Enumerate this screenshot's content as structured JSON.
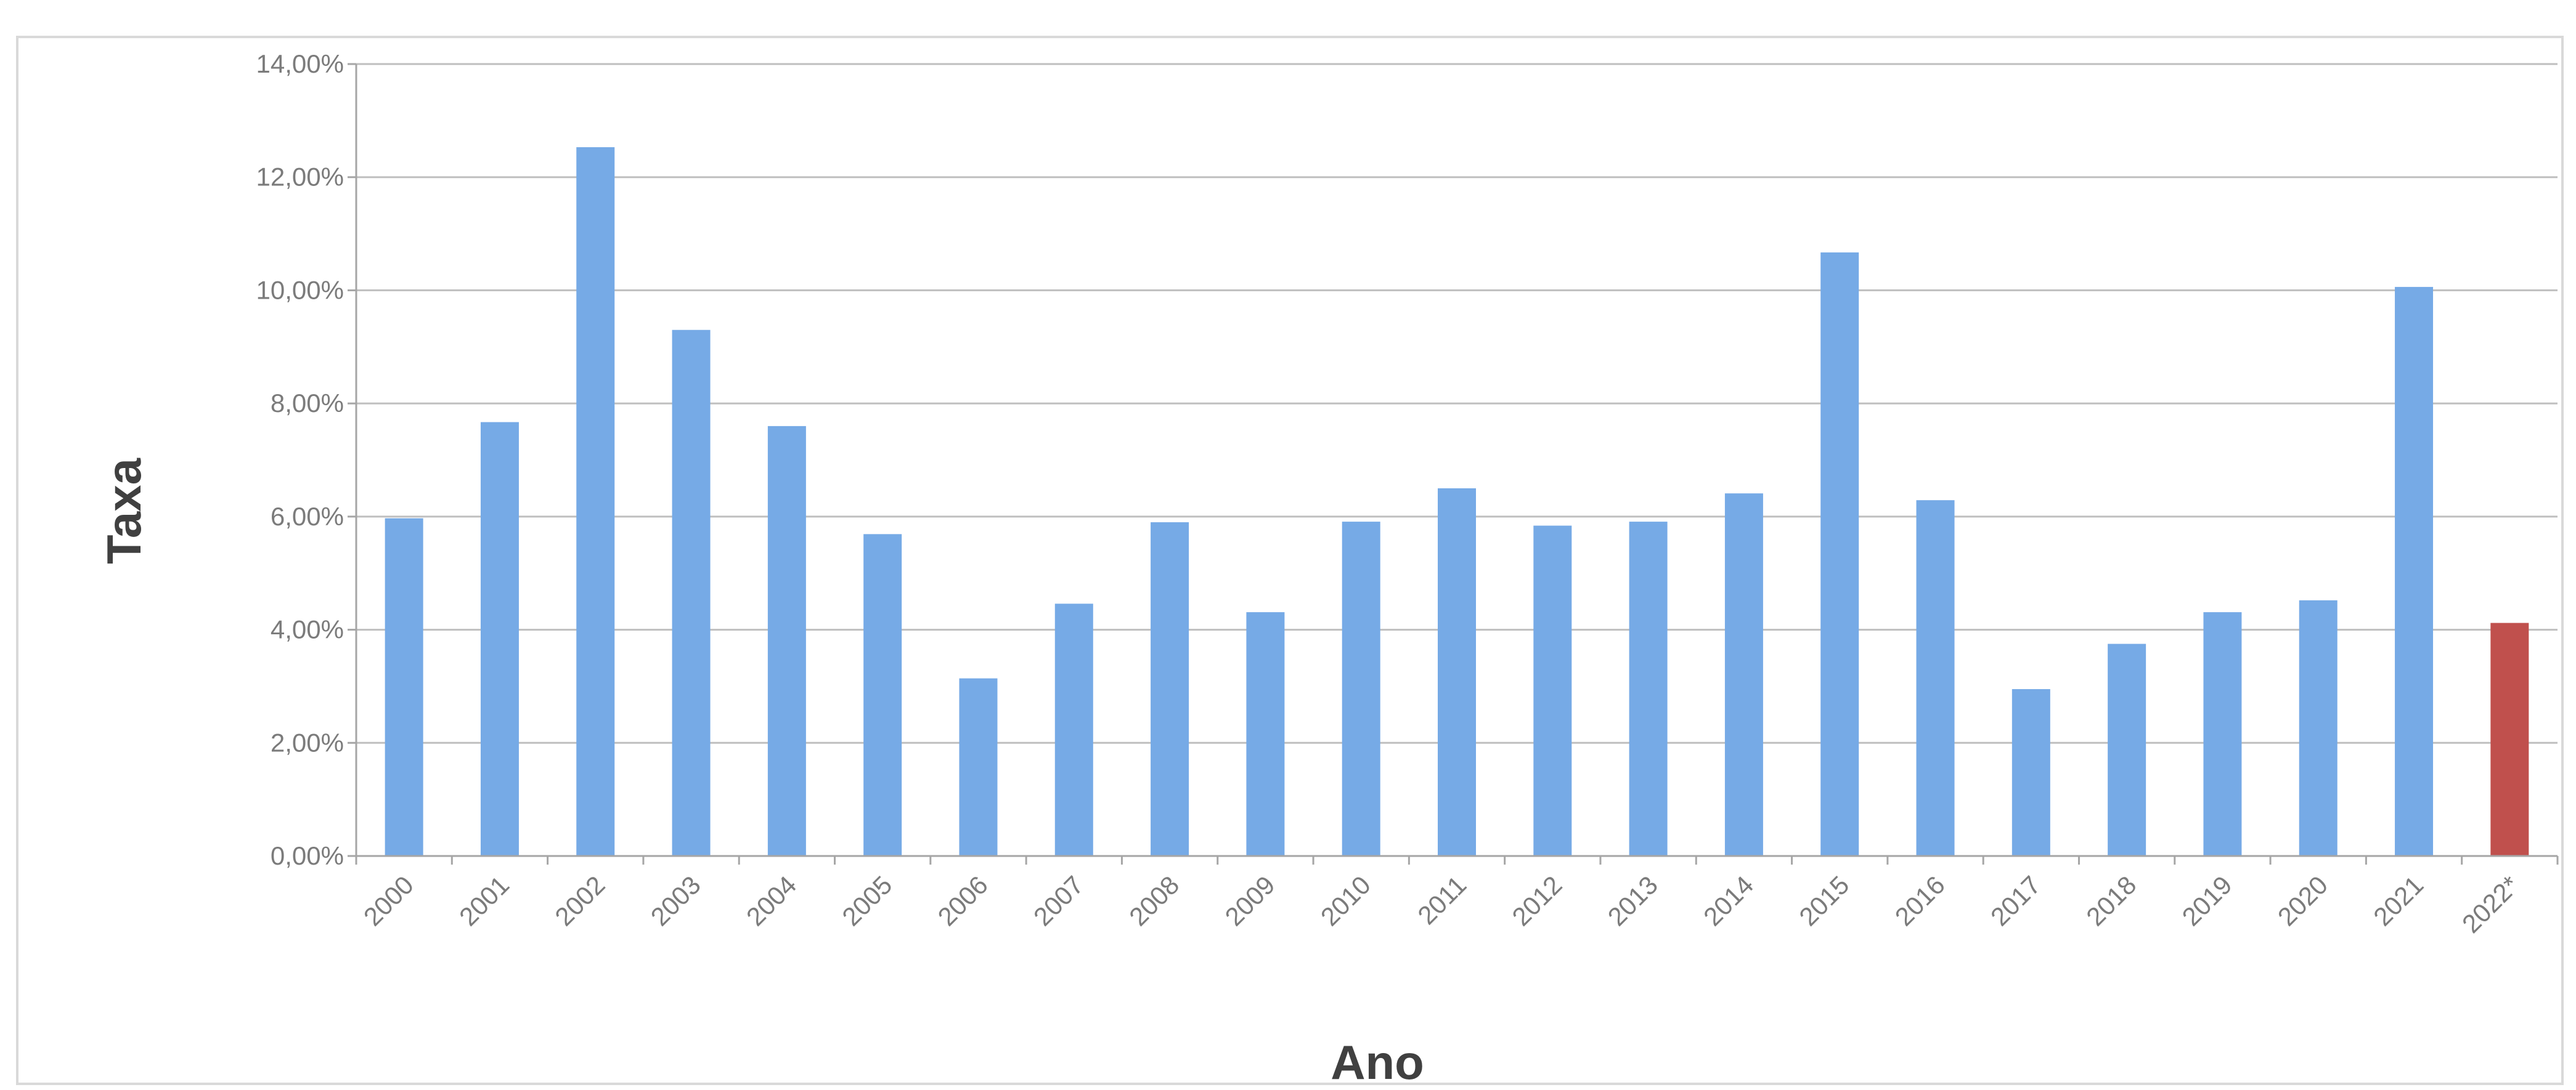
{
  "chart_data": {
    "type": "bar",
    "xlabel": "Ano",
    "ylabel": "Taxa",
    "ylim": [
      0,
      14
    ],
    "yticks": [
      0,
      2,
      4,
      6,
      8,
      10,
      12,
      14
    ],
    "ytick_labels": [
      "0,00%",
      "2,00%",
      "4,00%",
      "6,00%",
      "8,00%",
      "10,00%",
      "12,00%",
      "14,00%"
    ],
    "grid": true,
    "categories": [
      "2000",
      "2001",
      "2002",
      "2003",
      "2004",
      "2005",
      "2006",
      "2007",
      "2008",
      "2009",
      "2010",
      "2011",
      "2012",
      "2013",
      "2014",
      "2015",
      "2016",
      "2017",
      "2018",
      "2019",
      "2020",
      "2021",
      "2022*"
    ],
    "values": [
      5.97,
      7.67,
      12.53,
      9.3,
      7.6,
      5.69,
      3.14,
      4.46,
      5.9,
      4.31,
      5.91,
      6.5,
      5.84,
      5.91,
      6.41,
      10.67,
      6.29,
      2.95,
      3.75,
      4.31,
      4.52,
      10.06,
      4.12
    ],
    "colors": [
      "#76aae6",
      "#76aae6",
      "#76aae6",
      "#76aae6",
      "#76aae6",
      "#76aae6",
      "#76aae6",
      "#76aae6",
      "#76aae6",
      "#76aae6",
      "#76aae6",
      "#76aae6",
      "#76aae6",
      "#76aae6",
      "#76aae6",
      "#76aae6",
      "#76aae6",
      "#76aae6",
      "#76aae6",
      "#76aae6",
      "#76aae6",
      "#76aae6",
      "#c0504d"
    ]
  }
}
